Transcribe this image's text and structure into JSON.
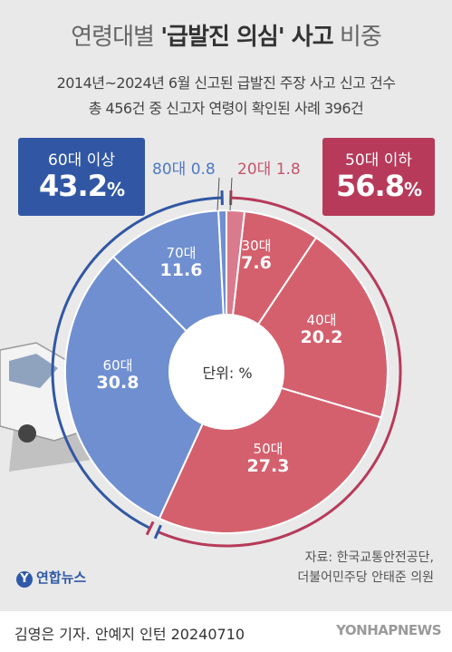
{
  "title": {
    "part1": "연령대별 ",
    "part2": "'급발진 의심' 사고",
    "part3": " 비중"
  },
  "subtitle_lines": [
    "2014년~2024년 6월 신고된 급발진 주장 사고 신고 건수",
    "총 456건 중 신고자 연령이 확인된 사례 396건"
  ],
  "groups": {
    "older": {
      "label": "60대 이상",
      "value": "43.2",
      "unit": "%",
      "color": "#3157a4"
    },
    "younger": {
      "label": "50대 이하",
      "value": "56.8",
      "unit": "%",
      "color": "#b73a5a"
    }
  },
  "small_labels": {
    "age80": "80대",
    "age80_value": "0.8",
    "age20": "20대",
    "age20_value": "1.8"
  },
  "segment_labels": {
    "s30": {
      "name": "30대",
      "value": "7.6"
    },
    "s40": {
      "name": "40대",
      "value": "20.2"
    },
    "s50": {
      "name": "50대",
      "value": "27.3"
    },
    "s60": {
      "name": "60대",
      "value": "30.8"
    },
    "s70": {
      "name": "70대",
      "value": "11.6"
    }
  },
  "center_unit": "단위: %",
  "source": [
    "자료: 한국교통안전공단,",
    "더불어민주당 안태준 의원"
  ],
  "logo_text": "연합뉴스",
  "footer_credit": "김영은 기자. 안예지 인턴  20240710",
  "watermark": "YONHAPNEWS",
  "chart_data": {
    "type": "pie",
    "categories": [
      "20대",
      "30대",
      "40대",
      "50대",
      "60대",
      "70대",
      "80대"
    ],
    "values": [
      1.8,
      7.6,
      20.2,
      27.3,
      30.8,
      11.6,
      0.8
    ],
    "colors": [
      "#d97a8d",
      "#d4606e",
      "#d4606e",
      "#d4606e",
      "#6f8fd0",
      "#6f8fd0",
      "#6f8fd0"
    ],
    "start": "top, clockwise"
  }
}
